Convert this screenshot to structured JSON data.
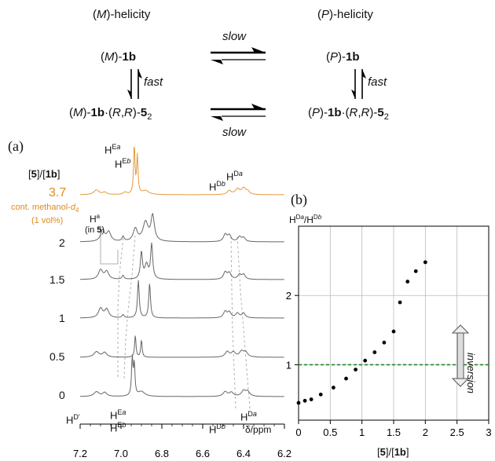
{
  "scheme": {
    "left_header": "(M)-helicity",
    "right_header": "(P)-helicity",
    "top_left": "(M)-1b",
    "top_right": "(P)-1b",
    "bottom_left": "(M)-1b·(R,R)-52",
    "bottom_right": "(P)-1b·(R,R)-52",
    "slow_top": "slow",
    "slow_bottom": "slow",
    "fast_left": "fast",
    "fast_right": "fast"
  },
  "panel_a": {
    "label": "(a)",
    "ratio_header": "[5]/[1b]",
    "orange_value": "3.7",
    "orange_note_1": "cont. methanol-d4",
    "orange_note_2": "(1 vol%)",
    "ha_label": "Ha",
    "ha_sub": "(in 5)",
    "trace_labels": [
      "2",
      "1.5",
      "1",
      "0.5",
      "0"
    ],
    "peak_labels_top": [
      "HEa",
      "HEb",
      "HDb",
      "HDa"
    ],
    "peak_labels_bottom": [
      "HD'",
      "HEa",
      "HEb",
      "HDb",
      "HDa"
    ],
    "xlabel": "δ/ppm",
    "xticks": [
      "7.2",
      "7.0",
      "6.8",
      "6.6",
      "6.4",
      "6.2"
    ]
  },
  "panel_b": {
    "label": "(b)",
    "ylabel": "HDa/HDb",
    "annotation": "inversion",
    "colors": {
      "line": "#1a8a1a",
      "points": "#000000"
    }
  },
  "chart_data": {
    "type": "scatter",
    "xlabel": "[5]/[1b]",
    "ylabel": "HDa/HDb",
    "xlim": [
      0,
      3
    ],
    "ylim": [
      0.2,
      3.0
    ],
    "xticks": [
      "0",
      "0.5",
      "1",
      "1.5",
      "2",
      "2.5",
      "3"
    ],
    "yticks": [
      "1",
      "2"
    ],
    "grid": true,
    "reference_line_y": 1,
    "x": [
      0,
      0.1,
      0.2,
      0.35,
      0.55,
      0.75,
      0.9,
      1.05,
      1.2,
      1.35,
      1.5,
      1.6,
      1.72,
      1.85,
      2.0
    ],
    "y": [
      0.45,
      0.48,
      0.5,
      0.57,
      0.67,
      0.8,
      0.93,
      1.06,
      1.18,
      1.32,
      1.48,
      1.9,
      2.2,
      2.35,
      2.48
    ]
  }
}
